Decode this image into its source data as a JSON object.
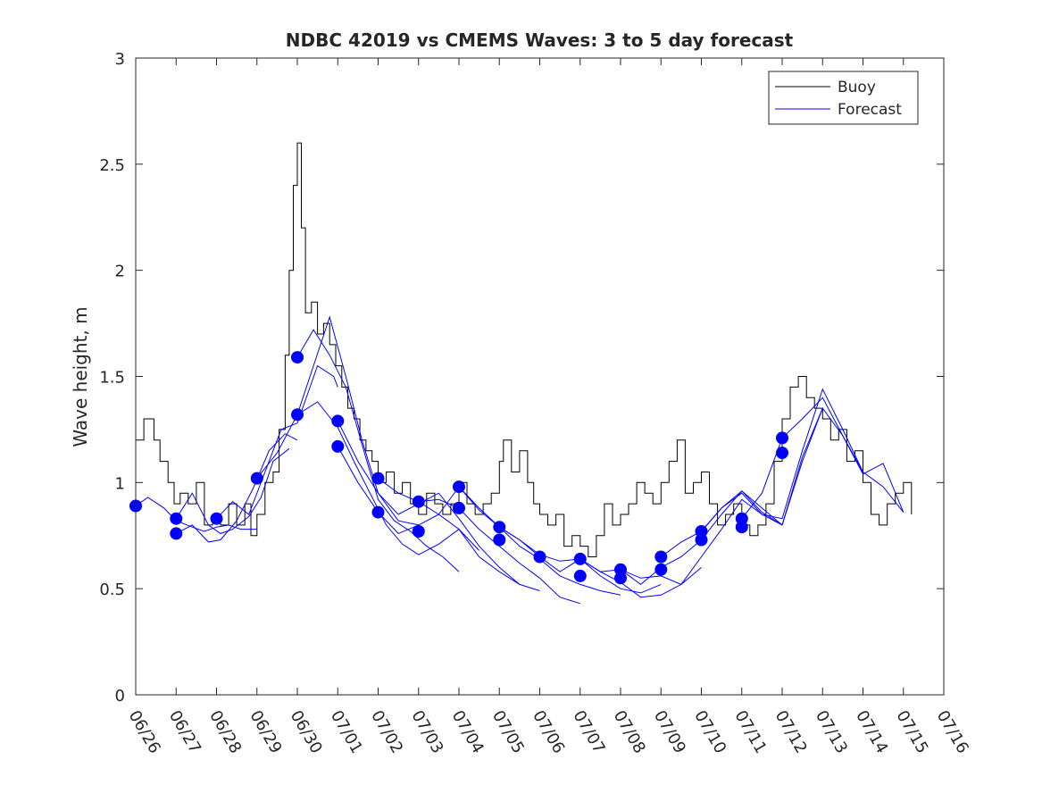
{
  "chart_data": {
    "type": "line",
    "title": "NDBC 42019 vs CMEMS Waves: 3 to 5 day forecast",
    "xlabel": "",
    "ylabel": "Wave height, m",
    "ylim": [
      0,
      3
    ],
    "xlim_days": [
      0,
      20
    ],
    "x_ticks": [
      "06/26",
      "06/27",
      "06/28",
      "06/29",
      "06/30",
      "07/01",
      "07/02",
      "07/03",
      "07/04",
      "07/05",
      "07/06",
      "07/07",
      "07/08",
      "07/09",
      "07/10",
      "07/11",
      "07/12",
      "07/13",
      "07/14",
      "07/15",
      "07/16"
    ],
    "y_ticks": [
      "0",
      "0.5",
      "1",
      "1.5",
      "2",
      "2.5",
      "3"
    ],
    "legend_position": "top-right",
    "grid": false,
    "colors": {
      "buoy": "#000000",
      "forecast": "#0000ff"
    },
    "series": [
      {
        "name": "Buoy",
        "x": [
          0,
          0.2,
          0.45,
          0.6,
          0.8,
          0.95,
          1.1,
          1.3,
          1.5,
          1.7,
          1.9,
          2.1,
          2.3,
          2.5,
          2.7,
          2.85,
          3.0,
          3.2,
          3.4,
          3.55,
          3.7,
          3.8,
          3.9,
          4.0,
          4.1,
          4.2,
          4.35,
          4.5,
          4.65,
          4.8,
          4.95,
          5.1,
          5.25,
          5.4,
          5.55,
          5.7,
          5.85,
          6.0,
          6.2,
          6.4,
          6.6,
          6.8,
          7.0,
          7.2,
          7.4,
          7.6,
          7.8,
          8.0,
          8.2,
          8.4,
          8.6,
          8.8,
          9.0,
          9.1,
          9.3,
          9.5,
          9.7,
          9.85,
          10.0,
          10.2,
          10.4,
          10.6,
          10.8,
          11.0,
          11.2,
          11.4,
          11.6,
          11.8,
          12.0,
          12.2,
          12.4,
          12.6,
          12.8,
          13.0,
          13.2,
          13.4,
          13.6,
          13.8,
          14.0,
          14.2,
          14.4,
          14.6,
          14.8,
          15.0,
          15.2,
          15.4,
          15.6,
          15.8,
          16.0,
          16.2,
          16.4,
          16.6,
          16.8,
          17.0,
          17.2,
          17.4,
          17.6,
          17.8,
          18.0,
          18.2,
          18.4,
          18.6,
          18.8,
          19.0,
          19.2
        ],
        "y": [
          1.2,
          1.3,
          1.2,
          1.1,
          1.0,
          0.9,
          0.95,
          0.9,
          1.0,
          0.8,
          0.85,
          0.8,
          0.9,
          0.8,
          0.9,
          0.75,
          0.85,
          1.0,
          1.05,
          1.25,
          1.6,
          2.0,
          2.4,
          2.6,
          2.2,
          1.8,
          1.85,
          1.7,
          1.75,
          1.65,
          1.55,
          1.45,
          1.35,
          1.3,
          1.2,
          1.15,
          1.1,
          1.0,
          1.05,
          0.95,
          1.0,
          0.9,
          0.85,
          0.95,
          0.9,
          0.85,
          0.9,
          1.0,
          0.9,
          0.85,
          0.9,
          0.95,
          1.1,
          1.2,
          1.05,
          1.15,
          1.0,
          0.9,
          0.85,
          0.8,
          0.85,
          0.7,
          0.75,
          0.7,
          0.65,
          0.75,
          0.9,
          0.8,
          0.85,
          0.9,
          1.0,
          0.95,
          0.9,
          1.0,
          1.1,
          1.2,
          0.95,
          1.0,
          1.05,
          0.9,
          0.8,
          0.85,
          0.9,
          0.8,
          0.75,
          0.8,
          0.9,
          1.1,
          1.3,
          1.45,
          1.5,
          1.4,
          1.35,
          1.3,
          1.2,
          1.25,
          1.1,
          1.15,
          1.0,
          0.85,
          0.8,
          0.9,
          0.95,
          1.0,
          0.85
        ]
      },
      {
        "name": "Forecast",
        "runs": [
          {
            "x": [
              0,
              0.3,
              0.7,
              1.0,
              1.4,
              1.7,
              2.0,
              2.3,
              2.6,
              3.0
            ],
            "y": [
              0.89,
              0.93,
              0.88,
              0.82,
              0.79,
              0.77,
              0.79,
              0.8,
              0.78,
              0.78
            ]
          },
          {
            "x": [
              1.0,
              1.4,
              1.8,
              2.1,
              2.4,
              2.8,
              3.1,
              3.4,
              3.8
            ],
            "y": [
              0.83,
              0.95,
              0.8,
              0.76,
              0.78,
              0.84,
              0.93,
              1.1,
              1.16
            ]
          },
          {
            "x": [
              1.0,
              1.4,
              1.8,
              2.1,
              2.5,
              2.9,
              3.3,
              3.7,
              4.0
            ],
            "y": [
              0.76,
              0.8,
              0.72,
              0.73,
              0.82,
              0.97,
              1.15,
              1.23,
              1.2
            ]
          },
          {
            "x": [
              2.0,
              2.4,
              2.8,
              3.2,
              3.6,
              4.0,
              4.5,
              4.9,
              5.0
            ],
            "y": [
              0.83,
              0.91,
              0.85,
              1.05,
              1.25,
              1.28,
              1.55,
              1.5,
              1.45
            ]
          },
          {
            "x": [
              3.0,
              3.5,
              4.0,
              4.4,
              4.8,
              5.2,
              5.6,
              6.0,
              6.5,
              7.0
            ],
            "y": [
              1.02,
              1.14,
              1.32,
              1.55,
              1.78,
              1.5,
              1.2,
              0.95,
              0.82,
              0.8
            ]
          },
          {
            "x": [
              4.0,
              4.4,
              4.8,
              5.2,
              5.6,
              6.0,
              6.4,
              6.8,
              7.2,
              7.6,
              8.0
            ],
            "y": [
              1.59,
              1.72,
              1.6,
              1.45,
              1.18,
              0.92,
              0.82,
              0.77,
              0.7,
              0.65,
              0.58
            ]
          },
          {
            "x": [
              4.0,
              4.5,
              5.0,
              5.4,
              5.8,
              6.2,
              6.6,
              7.0,
              7.5,
              8.0,
              8.5
            ],
            "y": [
              1.32,
              1.38,
              1.26,
              1.1,
              0.95,
              0.8,
              0.71,
              0.66,
              0.71,
              0.78,
              0.68
            ]
          },
          {
            "x": [
              5.0,
              5.5,
              6.0,
              6.5,
              7.0,
              7.5,
              8.0,
              8.5,
              9.0,
              9.5
            ],
            "y": [
              1.29,
              1.1,
              0.95,
              0.85,
              0.9,
              0.95,
              0.83,
              0.7,
              0.6,
              0.52
            ]
          },
          {
            "x": [
              5.0,
              5.5,
              6.0,
              6.5,
              7.0,
              7.5,
              8.0,
              8.5,
              9.0,
              9.5,
              10.0
            ],
            "y": [
              1.17,
              1.0,
              0.86,
              0.76,
              0.8,
              0.85,
              0.78,
              0.65,
              0.58,
              0.52,
              0.49
            ]
          },
          {
            "x": [
              6.0,
              6.5,
              7.0,
              7.5,
              8.0,
              8.5,
              9.0,
              9.5,
              10.0,
              10.5,
              11.0
            ],
            "y": [
              1.02,
              0.95,
              0.91,
              0.92,
              0.88,
              0.78,
              0.7,
              0.62,
              0.55,
              0.46,
              0.43
            ]
          },
          {
            "x": [
              7.0,
              7.5,
              8.0,
              8.5,
              9.0,
              9.5,
              10.0,
              10.5,
              11.0,
              11.5,
              12.0
            ],
            "y": [
              0.91,
              0.85,
              0.98,
              0.88,
              0.79,
              0.7,
              0.64,
              0.56,
              0.52,
              0.49,
              0.47
            ]
          },
          {
            "x": [
              8.0,
              8.5,
              9.0,
              9.5,
              10.0,
              10.5,
              11.0,
              11.5,
              12.0,
              12.5,
              13.0
            ],
            "y": [
              0.98,
              0.87,
              0.79,
              0.73,
              0.65,
              0.58,
              0.64,
              0.56,
              0.5,
              0.48,
              0.52
            ]
          },
          {
            "x": [
              9.0,
              9.5,
              10.0,
              10.5,
              11.0,
              11.5,
              12.0,
              12.5,
              13.0,
              13.5,
              14.0
            ],
            "y": [
              0.79,
              0.73,
              0.66,
              0.63,
              0.64,
              0.58,
              0.53,
              0.46,
              0.47,
              0.52,
              0.6
            ]
          },
          {
            "x": [
              11.0,
              11.5,
              12.0,
              12.5,
              13.0,
              13.5,
              14.0,
              14.5,
              15.0,
              15.5,
              16.0
            ],
            "y": [
              0.64,
              0.58,
              0.59,
              0.52,
              0.6,
              0.65,
              0.73,
              0.85,
              0.96,
              0.88,
              0.8
            ]
          },
          {
            "x": [
              12.0,
              12.5,
              13.0,
              13.5,
              14.0,
              14.5,
              15.0,
              15.5,
              16.0,
              16.5,
              17.0
            ],
            "y": [
              0.59,
              0.55,
              0.56,
              0.52,
              0.65,
              0.78,
              0.92,
              0.85,
              0.8,
              1.1,
              1.35
            ]
          },
          {
            "x": [
              13.0,
              13.5,
              14.0,
              14.5,
              15.0,
              15.5,
              16.0,
              16.5,
              17.0,
              17.5,
              18.0
            ],
            "y": [
              0.65,
              0.72,
              0.77,
              0.88,
              0.95,
              0.85,
              0.83,
              1.15,
              1.44,
              1.25,
              1.05
            ]
          },
          {
            "x": [
              14.0,
              14.5,
              15.0,
              15.5,
              16.0,
              16.5,
              17.0,
              17.5,
              18.0,
              18.5,
              19.0
            ],
            "y": [
              0.77,
              0.88,
              0.96,
              0.86,
              0.8,
              1.12,
              1.35,
              1.22,
              1.05,
              0.98,
              0.86
            ]
          },
          {
            "x": [
              15.0,
              15.5,
              16.0,
              16.5,
              17.0,
              17.5,
              18.0,
              18.5,
              19.0
            ],
            "y": [
              0.83,
              0.95,
              1.21,
              1.3,
              1.4,
              1.22,
              1.04,
              1.09,
              0.86
            ]
          }
        ],
        "markers": {
          "x": [
            0,
            1.0,
            1.0,
            2.0,
            3.0,
            4.0,
            4.0,
            5.0,
            5.0,
            6.0,
            6.0,
            7.0,
            7.0,
            8.0,
            8.0,
            9.0,
            9.0,
            10.0,
            11.0,
            11.0,
            12.0,
            12.0,
            13.0,
            13.0,
            14.0,
            14.0,
            15.0,
            15.0,
            16.0,
            16.0
          ],
          "y": [
            0.89,
            0.83,
            0.76,
            0.83,
            1.02,
            1.59,
            1.32,
            1.29,
            1.17,
            1.02,
            0.86,
            0.91,
            0.77,
            0.98,
            0.88,
            0.79,
            0.73,
            0.65,
            0.64,
            0.56,
            0.59,
            0.55,
            0.65,
            0.59,
            0.77,
            0.73,
            0.83,
            0.79,
            1.21,
            1.14
          ]
        }
      }
    ]
  }
}
